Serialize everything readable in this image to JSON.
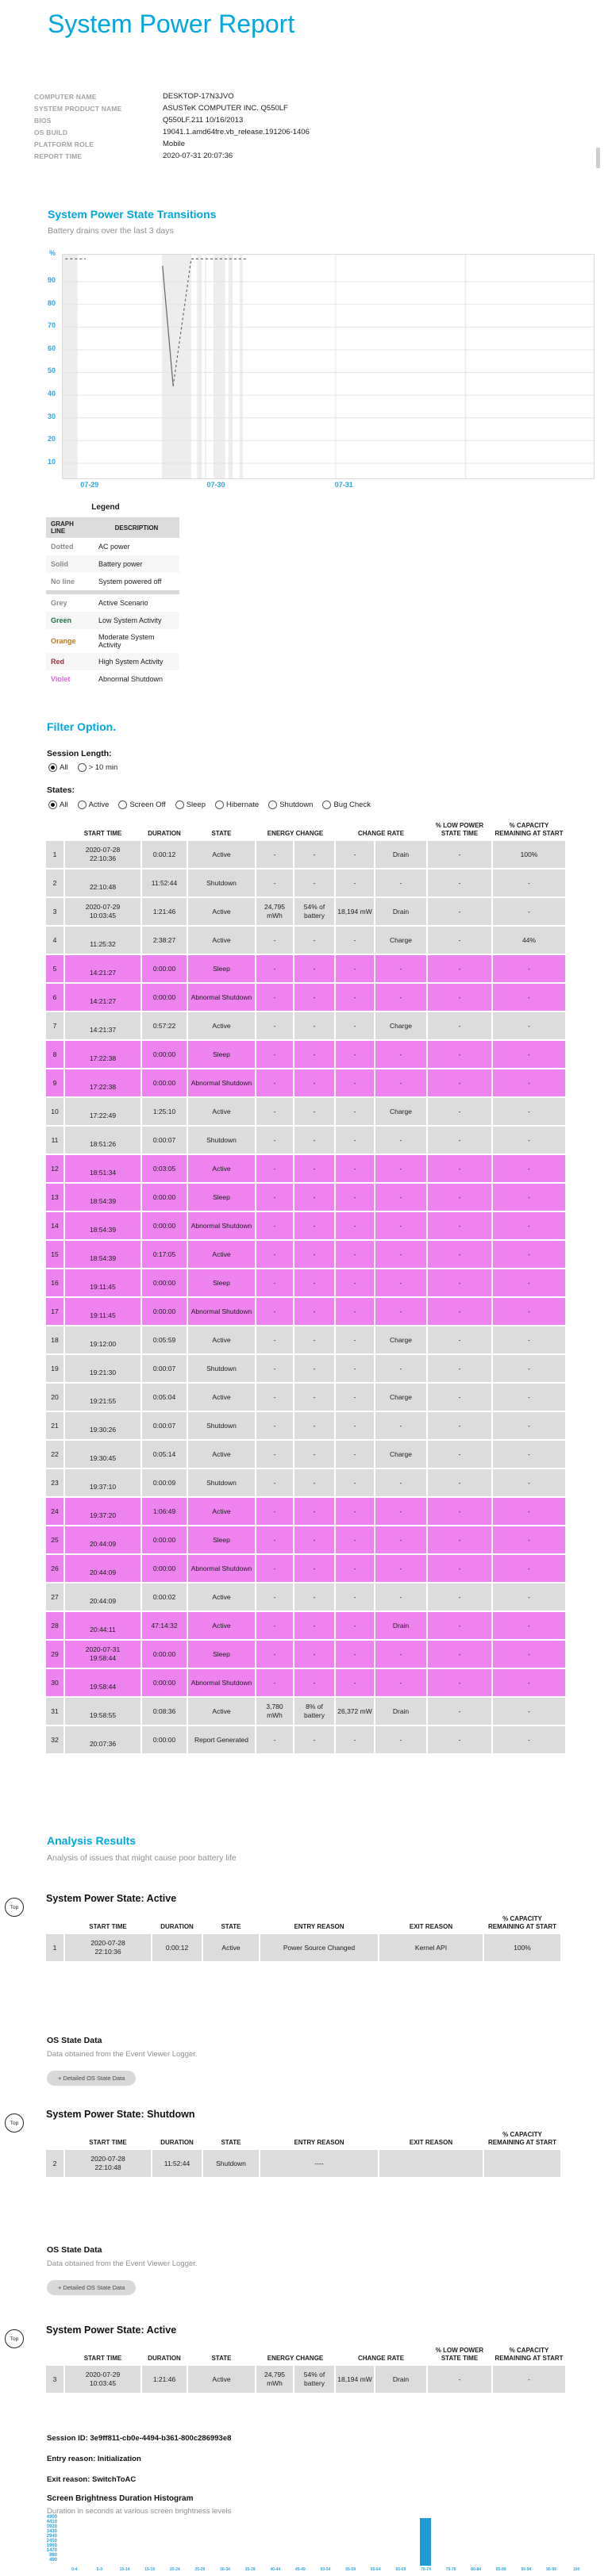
{
  "page": {
    "title": "System Power Report"
  },
  "colors": {
    "accent": "#00a7e1",
    "violet_row": "#ee82ee",
    "grey_row": "#dcdcdc",
    "legend_grey": "#8c8c8c",
    "legend_green": "#1e7145",
    "legend_orange": "#bf7b16",
    "legend_red": "#9e3039",
    "legend_violet": "#df5fdf",
    "histogram_bar": "#1f9cd6"
  },
  "info": {
    "rows": [
      {
        "label": "COMPUTER NAME",
        "value": "DESKTOP-17N3JVO"
      },
      {
        "label": "SYSTEM PRODUCT NAME",
        "value": "ASUSTeK COMPUTER INC. Q550LF"
      },
      {
        "label": "BIOS",
        "value": "Q550LF.211 10/16/2013"
      },
      {
        "label": "OS BUILD",
        "value": "19041.1.amd64fre.vb_release.191206-1406"
      },
      {
        "label": "PLATFORM ROLE",
        "value": "Mobile"
      },
      {
        "label": "REPORT TIME",
        "value": "2020-07-31 20:07:36"
      }
    ]
  },
  "transitions": {
    "heading": "System Power State Transitions",
    "subtitle": "Battery drains over the last 3 days"
  },
  "chart_data": [
    {
      "type": "line",
      "title": "System Power State Transitions",
      "subtitle": "Battery drains over the last 3 days",
      "ylabel": "%",
      "yticks": [
        10,
        20,
        30,
        40,
        50,
        60,
        70,
        80,
        90
      ],
      "ylim": [
        0,
        100
      ],
      "xticks": [
        {
          "label": "07-29",
          "pos": 0.052
        },
        {
          "label": "07-30",
          "pos": 0.29
        },
        {
          "label": "07-31",
          "pos": 0.531
        }
      ],
      "vgrid": [
        0.269,
        0.514,
        0.759
      ],
      "active_scenario_bands": [
        [
          0.0,
          0.028
        ],
        [
          0.187,
          0.242
        ],
        [
          0.253,
          0.262
        ],
        [
          0.284,
          0.306
        ],
        [
          0.312,
          0.32
        ],
        [
          0.333,
          0.339
        ]
      ],
      "series": [
        {
          "name": "AC power",
          "style": "dotted",
          "segments": [
            [
              [
                0.005,
                100
              ],
              [
                0.043,
                100
              ]
            ],
            [
              [
                0.208,
                44
              ],
              [
                0.242,
                100
              ]
            ],
            [
              [
                0.242,
                100
              ],
              [
                0.345,
                100
              ]
            ]
          ]
        },
        {
          "name": "Battery power",
          "style": "solid",
          "segments": [
            [
              [
                0.188,
                97
              ],
              [
                0.208,
                44
              ]
            ]
          ]
        }
      ]
    },
    {
      "type": "bar",
      "title": "Screen Brightness Duration Histogram",
      "subtitle": "Duration in seconds at various screen brightness levels",
      "categories": [
        "0-4",
        "5-9",
        "10-14",
        "15-19",
        "20-24",
        "25-29",
        "30-34",
        "35-39",
        "40-44",
        "45-49",
        "50-54",
        "55-59",
        "60-64",
        "65-69",
        "70-74",
        "75-79",
        "80-84",
        "85-89",
        "90-94",
        "95-99",
        "100"
      ],
      "values": [
        0,
        0,
        0,
        0,
        0,
        0,
        0,
        0,
        0,
        0,
        0,
        0,
        0,
        0,
        4900,
        0,
        0,
        0,
        0,
        0,
        0
      ],
      "yticks": [
        490,
        980,
        1470,
        1960,
        2450,
        2940,
        3430,
        3920,
        4410,
        4900
      ],
      "ylim": [
        0,
        4900
      ],
      "legend_position": "none"
    }
  ],
  "legend": {
    "title": "Legend",
    "headers": [
      "GRAPH LINE",
      "DESCRIPTION"
    ],
    "rows": [
      {
        "name": "Dotted",
        "desc": "AC power",
        "cls": "lg-dim"
      },
      {
        "name": "Solid",
        "desc": "Battery power",
        "cls": "lg-dim"
      },
      {
        "name": "No line",
        "desc": "System powered off",
        "cls": "lg-dim"
      },
      {
        "name": "",
        "desc": "",
        "cls": "divider"
      },
      {
        "name": "Grey",
        "desc": "Active Scenario",
        "cls": "lg-dim"
      },
      {
        "name": "Green",
        "desc": "Low System Activity",
        "cls": "lg-green"
      },
      {
        "name": "Orange",
        "desc": "Moderate System Activity",
        "cls": "lg-orange"
      },
      {
        "name": "Red",
        "desc": "High System Activity",
        "cls": "lg-red"
      },
      {
        "name": "Violet",
        "desc": "Abnormal Shutdown",
        "cls": "lg-violet"
      }
    ]
  },
  "filter": {
    "heading": "Filter Option.",
    "session_label": "Session Length:",
    "session_options": [
      {
        "label": "All",
        "cls": "sel"
      },
      {
        "label": "> 10 min"
      }
    ],
    "states_label": "States:",
    "state_options": [
      {
        "label": "All",
        "cls": "sel"
      },
      {
        "label": "Active"
      },
      {
        "label": "Screen Off"
      },
      {
        "label": "Sleep"
      },
      {
        "label": "Hibernate"
      },
      {
        "label": "Shutdown"
      },
      {
        "label": "Bug Check"
      }
    ]
  },
  "main_table": {
    "headers": [
      "START TIME",
      "DURATION",
      "STATE",
      "ENERGY CHANGE",
      "CHANGE RATE",
      "% LOW POWER STATE TIME",
      "% CAPACITY REMAINING AT START"
    ],
    "rows": [
      {
        "n": "1",
        "date": "2020-07-28",
        "time": "22:10:36",
        "dur": "0:00:12",
        "state": "Active",
        "e1": "-",
        "e2": "-",
        "c1": "-",
        "c2": "Drain",
        "low": "-",
        "cap": "100%"
      },
      {
        "n": "2",
        "date": "",
        "time": "22:10:48",
        "dur": "11:52:44",
        "state": "Shutdown",
        "e1": "-",
        "e2": "-",
        "c1": "-",
        "c2": "-",
        "low": "-",
        "cap": "-"
      },
      {
        "n": "3",
        "date": "2020-07-29",
        "time": "10:03:45",
        "dur": "1:21:46",
        "state": "Active",
        "e1": "24,795 mWh",
        "e2": "54% of battery",
        "c1": "18,194 mW",
        "c2": "Drain",
        "low": "-",
        "cap": "-"
      },
      {
        "n": "4",
        "date": "",
        "time": "11:25:32",
        "dur": "2:38:27",
        "state": "Active",
        "e1": "-",
        "e2": "-",
        "c1": "-",
        "c2": "Charge",
        "low": "-",
        "cap": "44%"
      },
      {
        "n": "5",
        "date": "",
        "time": "14:21:27",
        "dur": "0:00:00",
        "state": "Sleep",
        "e1": "-",
        "e2": "-",
        "c1": "-",
        "c2": "-",
        "low": "-",
        "cap": "-",
        "cls": "v"
      },
      {
        "n": "6",
        "date": "",
        "time": "14:21:27",
        "dur": "0:00:00",
        "state": "Abnormal Shutdown",
        "e1": "-",
        "e2": "-",
        "c1": "-",
        "c2": "-",
        "low": "-",
        "cap": "-",
        "cls": "v"
      },
      {
        "n": "7",
        "date": "",
        "time": "14:21:37",
        "dur": "0:57:22",
        "state": "Active",
        "e1": "-",
        "e2": "-",
        "c1": "-",
        "c2": "Charge",
        "low": "-",
        "cap": "-"
      },
      {
        "n": "8",
        "date": "",
        "time": "17:22:38",
        "dur": "0:00:00",
        "state": "Sleep",
        "e1": "-",
        "e2": "-",
        "c1": "-",
        "c2": "-",
        "low": "-",
        "cap": "-",
        "cls": "v"
      },
      {
        "n": "9",
        "date": "",
        "time": "17:22:38",
        "dur": "0:00:00",
        "state": "Abnormal Shutdown",
        "e1": "-",
        "e2": "-",
        "c1": "-",
        "c2": "-",
        "low": "-",
        "cap": "-",
        "cls": "v"
      },
      {
        "n": "10",
        "date": "",
        "time": "17:22:49",
        "dur": "1:25:10",
        "state": "Active",
        "e1": "-",
        "e2": "-",
        "c1": "-",
        "c2": "Charge",
        "low": "-",
        "cap": "-"
      },
      {
        "n": "11",
        "date": "",
        "time": "18:51:26",
        "dur": "0:00:07",
        "state": "Shutdown",
        "e1": "-",
        "e2": "-",
        "c1": "-",
        "c2": "-",
        "low": "-",
        "cap": "-"
      },
      {
        "n": "12",
        "date": "",
        "time": "18:51:34",
        "dur": "0:03:05",
        "state": "Active",
        "e1": "-",
        "e2": "-",
        "c1": "-",
        "c2": "-",
        "low": "-",
        "cap": "-",
        "cls": "v"
      },
      {
        "n": "13",
        "date": "",
        "time": "18:54:39",
        "dur": "0:00:00",
        "state": "Sleep",
        "e1": "-",
        "e2": "-",
        "c1": "-",
        "c2": "-",
        "low": "-",
        "cap": "-",
        "cls": "v"
      },
      {
        "n": "14",
        "date": "",
        "time": "18:54:39",
        "dur": "0:00:00",
        "state": "Abnormal Shutdown",
        "e1": "-",
        "e2": "-",
        "c1": "-",
        "c2": "-",
        "low": "-",
        "cap": "-",
        "cls": "v"
      },
      {
        "n": "15",
        "date": "",
        "time": "18:54:39",
        "dur": "0:17:05",
        "state": "Active",
        "e1": "-",
        "e2": "-",
        "c1": "-",
        "c2": "-",
        "low": "-",
        "cap": "-",
        "cls": "v"
      },
      {
        "n": "16",
        "date": "",
        "time": "19:11:45",
        "dur": "0:00:00",
        "state": "Sleep",
        "e1": "-",
        "e2": "-",
        "c1": "-",
        "c2": "-",
        "low": "-",
        "cap": "-",
        "cls": "v"
      },
      {
        "n": "17",
        "date": "",
        "time": "19:11:45",
        "dur": "0:00:00",
        "state": "Abnormal Shutdown",
        "e1": "-",
        "e2": "-",
        "c1": "-",
        "c2": "-",
        "low": "-",
        "cap": "-",
        "cls": "v"
      },
      {
        "n": "18",
        "date": "",
        "time": "19:12:00",
        "dur": "0:05:59",
        "state": "Active",
        "e1": "-",
        "e2": "-",
        "c1": "-",
        "c2": "Charge",
        "low": "-",
        "cap": "-"
      },
      {
        "n": "19",
        "date": "",
        "time": "19:21:30",
        "dur": "0:00:07",
        "state": "Shutdown",
        "e1": "-",
        "e2": "-",
        "c1": "-",
        "c2": "-",
        "low": "-",
        "cap": "-"
      },
      {
        "n": "20",
        "date": "",
        "time": "19:21:55",
        "dur": "0:05:04",
        "state": "Active",
        "e1": "-",
        "e2": "-",
        "c1": "-",
        "c2": "Charge",
        "low": "-",
        "cap": "-"
      },
      {
        "n": "21",
        "date": "",
        "time": "19:30:26",
        "dur": "0:00:07",
        "state": "Shutdown",
        "e1": "-",
        "e2": "-",
        "c1": "-",
        "c2": "-",
        "low": "-",
        "cap": "-"
      },
      {
        "n": "22",
        "date": "",
        "time": "19:30:45",
        "dur": "0:05:14",
        "state": "Active",
        "e1": "-",
        "e2": "-",
        "c1": "-",
        "c2": "Charge",
        "low": "-",
        "cap": "-"
      },
      {
        "n": "23",
        "date": "",
        "time": "19:37:10",
        "dur": "0:00:09",
        "state": "Shutdown",
        "e1": "-",
        "e2": "-",
        "c1": "-",
        "c2": "-",
        "low": "-",
        "cap": "-"
      },
      {
        "n": "24",
        "date": "",
        "time": "19:37:20",
        "dur": "1:06:49",
        "state": "Active",
        "e1": "-",
        "e2": "-",
        "c1": "-",
        "c2": "-",
        "low": "-",
        "cap": "-",
        "cls": "v"
      },
      {
        "n": "25",
        "date": "",
        "time": "20:44:09",
        "dur": "0:00:00",
        "state": "Sleep",
        "e1": "-",
        "e2": "-",
        "c1": "-",
        "c2": "-",
        "low": "-",
        "cap": "-",
        "cls": "v"
      },
      {
        "n": "26",
        "date": "",
        "time": "20:44:09",
        "dur": "0:00:00",
        "state": "Abnormal Shutdown",
        "e1": "-",
        "e2": "-",
        "c1": "-",
        "c2": "-",
        "low": "-",
        "cap": "-",
        "cls": "v"
      },
      {
        "n": "27",
        "date": "",
        "time": "20:44:09",
        "dur": "0:00:02",
        "state": "Active",
        "e1": "-",
        "e2": "-",
        "c1": "-",
        "c2": "-",
        "low": "-",
        "cap": "-"
      },
      {
        "n": "28",
        "date": "",
        "time": "20:44:11",
        "dur": "47:14:32",
        "state": "Active",
        "e1": "-",
        "e2": "-",
        "c1": "-",
        "c2": "Drain",
        "low": "-",
        "cap": "-",
        "cls": "v"
      },
      {
        "n": "29",
        "date": "2020-07-31",
        "time": "19:58:44",
        "dur": "0:00:00",
        "state": "Sleep",
        "e1": "-",
        "e2": "-",
        "c1": "-",
        "c2": "-",
        "low": "-",
        "cap": "-",
        "cls": "v"
      },
      {
        "n": "30",
        "date": "",
        "time": "19:58:44",
        "dur": "0:00:00",
        "state": "Abnormal Shutdown",
        "e1": "-",
        "e2": "-",
        "c1": "-",
        "c2": "-",
        "low": "-",
        "cap": "-",
        "cls": "v"
      },
      {
        "n": "31",
        "date": "",
        "time": "19:58:55",
        "dur": "0:08:36",
        "state": "Active",
        "e1": "3,780 mWh",
        "e2": "8% of battery",
        "c1": "26,372 mW",
        "c2": "Drain",
        "low": "-",
        "cap": "-"
      },
      {
        "n": "32",
        "date": "",
        "time": "20:07:36",
        "dur": "0:00:00",
        "state": "Report Generated",
        "e1": "-",
        "e2": "-",
        "c1": "-",
        "c2": "-",
        "low": "-",
        "cap": "-"
      }
    ]
  },
  "analysis": {
    "heading": "Analysis Results",
    "subtitle": "Analysis of issues that might cause poor battery life",
    "top_label": "Top",
    "reason_headers": [
      "START TIME",
      "DURATION",
      "STATE",
      "ENTRY REASON",
      "EXIT REASON",
      "% CAPACITY REMAINING AT START"
    ],
    "os_block": {
      "title": "OS State Data",
      "subtitle": "Data obtained from the Event Viewer Logger.",
      "button": "+  Detailed OS State Data"
    },
    "sections": [
      {
        "heading": "System Power State: Active",
        "rows": [
          {
            "n": "1",
            "date": "2020-07-28",
            "time": "22:10:36",
            "dur": "0:00:12",
            "state": "Active",
            "entry": "Power Source Changed",
            "exit": "Kernel API",
            "cap": "100%"
          }
        ]
      },
      {
        "heading": "System Power State: Shutdown",
        "rows": [
          {
            "n": "2",
            "date": "2020-07-28",
            "time": "22:10:48",
            "dur": "11:52:44",
            "state": "Shutdown",
            "entry": "----",
            "exit": "",
            "cap": ""
          }
        ]
      },
      {
        "heading": "System Power State: Active",
        "rows": [
          {
            "n": "3",
            "date": "2020-07-29",
            "time": "10:03:45",
            "dur": "1:21:46",
            "state": "Active",
            "e1": "24,795 mWh",
            "e2": "54% of battery",
            "c1": "18,194 mW",
            "c2": "Drain",
            "low": "-",
            "cap": "-"
          }
        ]
      }
    ]
  },
  "session": {
    "id_label": "Session ID:",
    "id": "3e9ff811-cb0e-4494-b361-800c286993e8",
    "entry_label": "Entry reason:",
    "entry": "Initialization",
    "exit_label": "Exit reason:",
    "exit": "SwitchToAC"
  }
}
